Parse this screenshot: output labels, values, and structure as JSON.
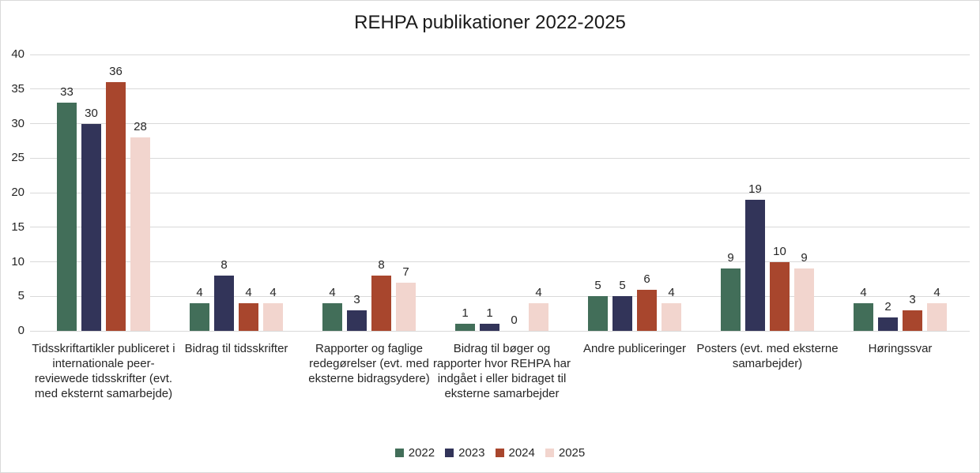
{
  "chart_data": {
    "type": "bar",
    "title": "REHPA publikationer 2022-2025",
    "categories": [
      "Tidsskriftartikler publiceret i internationale peer-reviewede tidsskrifter (evt. med eksternt samarbejde)",
      "Bidrag til tidsskrifter",
      "Rapporter og  faglige redegørelser (evt. med eksterne bidragsydere)",
      "Bidrag til bøger og rapporter hvor REHPA har indgået i eller bidraget til eksterne samarbejder",
      "Andre publiceringer",
      "Posters (evt. med eksterne samarbejder)",
      "Høringssvar"
    ],
    "series": [
      {
        "name": "2022",
        "color": "#426E59",
        "values": [
          33,
          4,
          4,
          1,
          5,
          9,
          4
        ]
      },
      {
        "name": "2023",
        "color": "#323459",
        "values": [
          30,
          8,
          3,
          1,
          5,
          19,
          2
        ]
      },
      {
        "name": "2024",
        "color": "#A8462D",
        "values": [
          36,
          4,
          8,
          0,
          6,
          10,
          3
        ]
      },
      {
        "name": "2025",
        "color": "#F2D5CE",
        "values": [
          28,
          4,
          7,
          4,
          4,
          9,
          4
        ]
      }
    ],
    "xlabel": "",
    "ylabel": "",
    "ylim": [
      0,
      40
    ],
    "yticks": [
      0,
      5,
      10,
      15,
      20,
      25,
      30,
      35,
      40
    ],
    "grid": true,
    "legend_position": "bottom",
    "show_value_labels": true,
    "gridline_color": "#d9d9d9",
    "text_color": "#262626"
  }
}
